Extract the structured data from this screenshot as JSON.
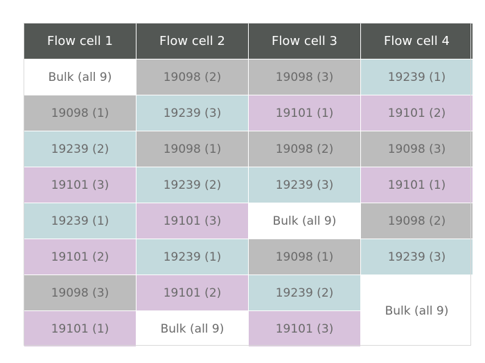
{
  "table": {
    "headers": [
      "Flow cell 1",
      "Flow cell 2",
      "Flow cell 3",
      "Flow cell 4"
    ],
    "rows": [
      [
        {
          "text": "Bulk (all 9)",
          "group": "bulk"
        },
        {
          "text": "19098 (2)",
          "group": "19098"
        },
        {
          "text": "19098 (3)",
          "group": "19098"
        },
        {
          "text": "19239 (1)",
          "group": "19239"
        }
      ],
      [
        {
          "text": "19098 (1)",
          "group": "19098"
        },
        {
          "text": "19239 (3)",
          "group": "19239"
        },
        {
          "text": "19101 (1)",
          "group": "19101"
        },
        {
          "text": "19101 (2)",
          "group": "19101"
        }
      ],
      [
        {
          "text": "19239 (2)",
          "group": "19239"
        },
        {
          "text": "19098 (1)",
          "group": "19098"
        },
        {
          "text": "19098 (2)",
          "group": "19098"
        },
        {
          "text": "19098 (3)",
          "group": "19098"
        }
      ],
      [
        {
          "text": "19101 (3)",
          "group": "19101"
        },
        {
          "text": "19239 (2)",
          "group": "19239"
        },
        {
          "text": "19239 (3)",
          "group": "19239"
        },
        {
          "text": "19101 (1)",
          "group": "19101"
        }
      ],
      [
        {
          "text": "19239 (1)",
          "group": "19239"
        },
        {
          "text": "19101 (3)",
          "group": "19101"
        },
        {
          "text": "Bulk (all 9)",
          "group": "bulk"
        },
        {
          "text": "19098 (2)",
          "group": "19098"
        }
      ],
      [
        {
          "text": "19101 (2)",
          "group": "19101"
        },
        {
          "text": "19239 (1)",
          "group": "19239"
        },
        {
          "text": "19098 (1)",
          "group": "19098"
        },
        {
          "text": "19239 (3)",
          "group": "19239"
        }
      ],
      [
        {
          "text": "19098 (3)",
          "group": "19098"
        },
        {
          "text": "19101 (2)",
          "group": "19101"
        },
        {
          "text": "19239 (2)",
          "group": "19239"
        },
        {
          "text": "Bulk (all 9)",
          "group": "bulk",
          "rowspan": 2
        }
      ],
      [
        {
          "text": "19101 (1)",
          "group": "19101"
        },
        {
          "text": "Bulk (all 9)",
          "group": "bulk"
        },
        {
          "text": "19101 (3)",
          "group": "19101"
        }
      ]
    ]
  },
  "colors": {
    "header_bg": "#535754",
    "bulk": "#ffffff",
    "19098": "#bcbcbc",
    "19239": "#c3dadd",
    "19101": "#d8c2dc"
  }
}
